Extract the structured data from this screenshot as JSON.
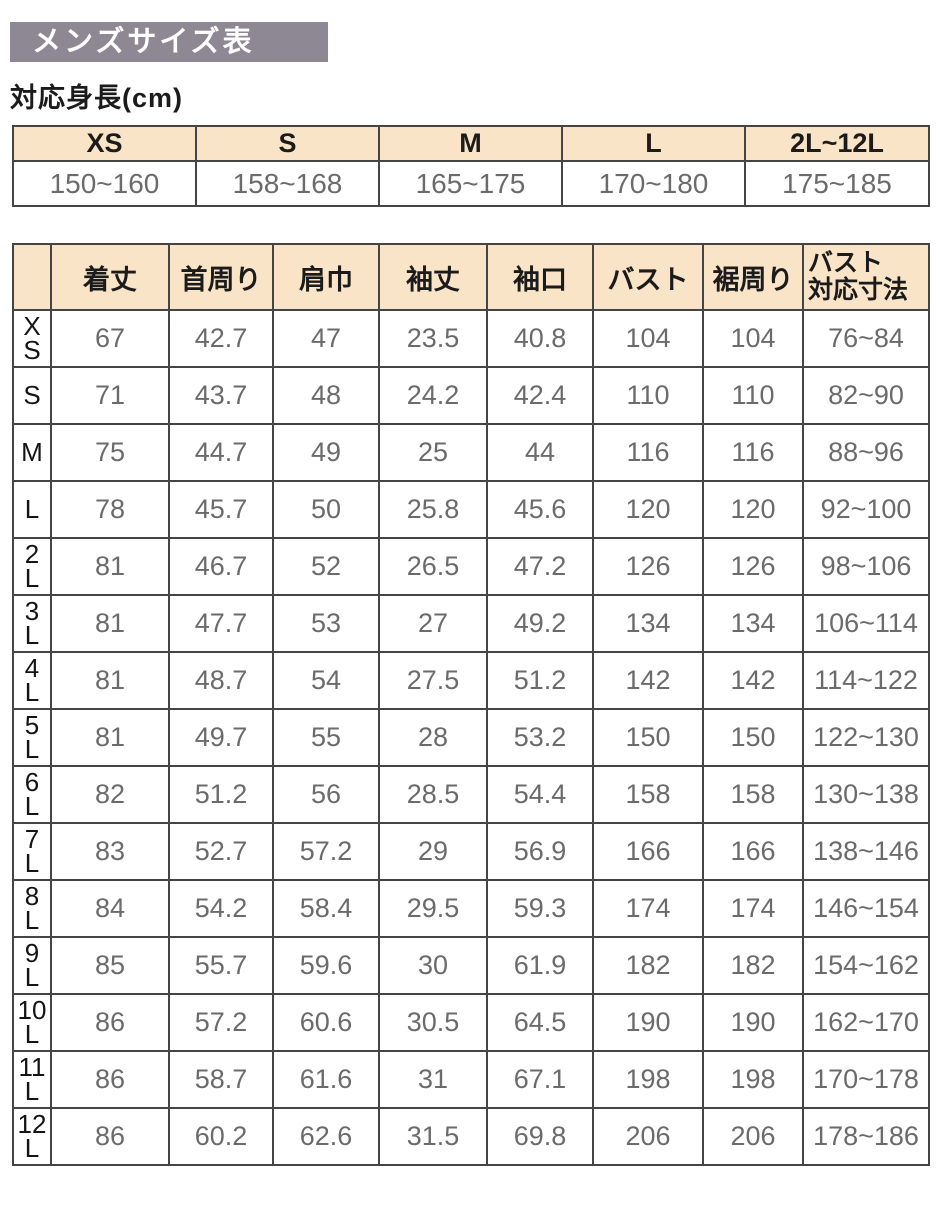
{
  "page": {
    "title": "メンズサイズ表",
    "subtitle": "対応身長(cm)"
  },
  "colors": {
    "title_bar_bg": "#8E8894",
    "title_text": "#FFFFFF",
    "table_header_bg": "#F9E4C8",
    "table_border": "#454545",
    "value_text": "#6B6B6B",
    "label_text": "#1B1B1B"
  },
  "height_table": {
    "columns": [
      {
        "size": "XS",
        "height": "150~160"
      },
      {
        "size": "S",
        "height": "158~168"
      },
      {
        "size": "M",
        "height": "165~175"
      },
      {
        "size": "L",
        "height": "170~180"
      },
      {
        "size": "2L~12L",
        "height": "175~185"
      }
    ]
  },
  "size_table": {
    "corner": "",
    "headers": [
      "着丈",
      "首周り",
      "肩巾",
      "袖丈",
      "袖口",
      "バスト",
      "裾周り",
      "バスト\n対応寸法"
    ],
    "rows": [
      {
        "size": "XS",
        "size_display": "X\nS",
        "values": [
          "67",
          "42.7",
          "47",
          "23.5",
          "40.8",
          "104",
          "104",
          "76~84"
        ]
      },
      {
        "size": "S",
        "size_display": "S",
        "values": [
          "71",
          "43.7",
          "48",
          "24.2",
          "42.4",
          "110",
          "110",
          "82~90"
        ]
      },
      {
        "size": "M",
        "size_display": "M",
        "values": [
          "75",
          "44.7",
          "49",
          "25",
          "44",
          "116",
          "116",
          "88~96"
        ]
      },
      {
        "size": "L",
        "size_display": "L",
        "values": [
          "78",
          "45.7",
          "50",
          "25.8",
          "45.6",
          "120",
          "120",
          "92~100"
        ]
      },
      {
        "size": "2L",
        "size_display": "2\nL",
        "values": [
          "81",
          "46.7",
          "52",
          "26.5",
          "47.2",
          "126",
          "126",
          "98~106"
        ]
      },
      {
        "size": "3L",
        "size_display": "3\nL",
        "values": [
          "81",
          "47.7",
          "53",
          "27",
          "49.2",
          "134",
          "134",
          "106~114"
        ]
      },
      {
        "size": "4L",
        "size_display": "4\nL",
        "values": [
          "81",
          "48.7",
          "54",
          "27.5",
          "51.2",
          "142",
          "142",
          "114~122"
        ]
      },
      {
        "size": "5L",
        "size_display": "5\nL",
        "values": [
          "81",
          "49.7",
          "55",
          "28",
          "53.2",
          "150",
          "150",
          "122~130"
        ]
      },
      {
        "size": "6L",
        "size_display": "6\nL",
        "values": [
          "82",
          "51.2",
          "56",
          "28.5",
          "54.4",
          "158",
          "158",
          "130~138"
        ]
      },
      {
        "size": "7L",
        "size_display": "7\nL",
        "values": [
          "83",
          "52.7",
          "57.2",
          "29",
          "56.9",
          "166",
          "166",
          "138~146"
        ]
      },
      {
        "size": "8L",
        "size_display": "8\nL",
        "values": [
          "84",
          "54.2",
          "58.4",
          "29.5",
          "59.3",
          "174",
          "174",
          "146~154"
        ]
      },
      {
        "size": "9L",
        "size_display": "9\nL",
        "values": [
          "85",
          "55.7",
          "59.6",
          "30",
          "61.9",
          "182",
          "182",
          "154~162"
        ]
      },
      {
        "size": "10L",
        "size_display": "10\nL",
        "values": [
          "86",
          "57.2",
          "60.6",
          "30.5",
          "64.5",
          "190",
          "190",
          "162~170"
        ]
      },
      {
        "size": "11L",
        "size_display": "11\nL",
        "values": [
          "86",
          "58.7",
          "61.6",
          "31",
          "67.1",
          "198",
          "198",
          "170~178"
        ]
      },
      {
        "size": "12L",
        "size_display": "12\nL",
        "values": [
          "86",
          "60.2",
          "62.6",
          "31.5",
          "69.8",
          "206",
          "206",
          "178~186"
        ]
      }
    ]
  }
}
